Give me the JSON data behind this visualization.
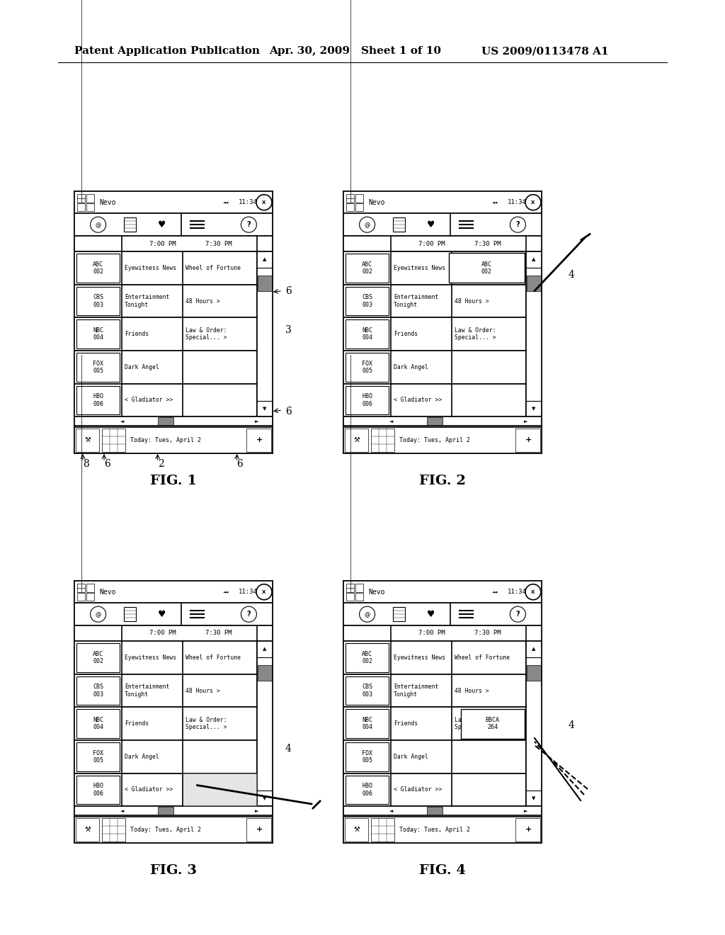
{
  "header_text": "Patent Application Publication",
  "date_text": "Apr. 30, 2009",
  "sheet_text": "Sheet 1 of 10",
  "patent_text": "US 2009/0113478 A1",
  "fig1_label": "FIG. 1",
  "fig2_label": "FIG. 2",
  "fig3_label": "FIG. 3",
  "fig4_label": "FIG. 4",
  "bg_color": "#ffffff",
  "line_color": "#000000",
  "title_bar": "Nevo",
  "time1": "7:00 PM",
  "time2": "7:30 PM",
  "channels": [
    "ABC\n002",
    "CBS\n003",
    "NBC\n004",
    "FOX\n005",
    "HBO\n006"
  ],
  "col1_shows": [
    "Eyewitness News",
    "Entertainment\nTonight",
    "Friends",
    "Dark Angel",
    "< Gladiator >>"
  ],
  "col2_shows": [
    "Wheel of Fortune",
    "48 Hours >",
    "Law & Order:\nSpecial... >",
    "",
    ""
  ],
  "status_bar": "Today: Tues, April 2",
  "clock": "11:34"
}
